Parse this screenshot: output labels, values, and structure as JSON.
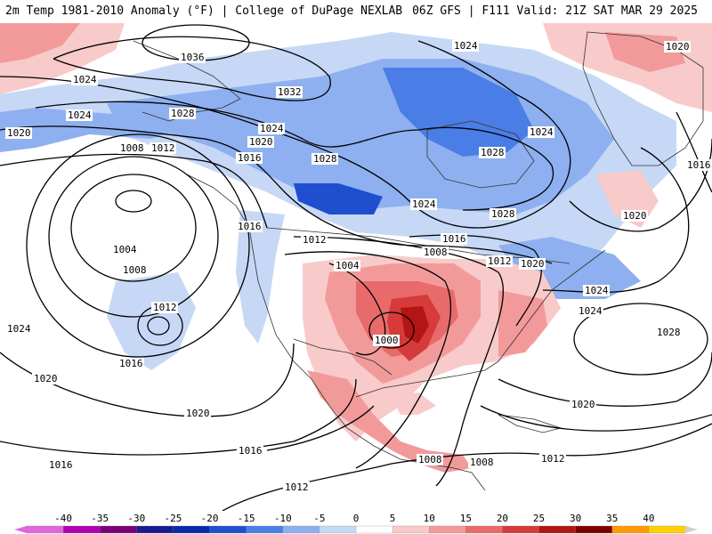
{
  "header": {
    "title_left": "2m Temp 1981-2010 Anomaly (°F) | College of DuPage NEXLAB",
    "title_right": "06Z GFS | F111 Valid: 21Z SAT MAR 29 2025"
  },
  "isobar_labels": [
    "1036",
    "1032",
    "1028",
    "1024",
    "1020",
    "1016",
    "1012",
    "1008",
    "1004",
    "1000"
  ],
  "legend": {
    "ticks": [
      "-40",
      "-35",
      "-30",
      "-25",
      "-20",
      "-15",
      "-10",
      "-5",
      "0",
      "5",
      "10",
      "15",
      "20",
      "25",
      "30",
      "35",
      "40"
    ],
    "colors": [
      "#e066e0",
      "#b000b0",
      "#7a007a",
      "#1a1a8c",
      "#0a2aa8",
      "#1f4fcf",
      "#4a7ee6",
      "#8eb0f0",
      "#c6d8f6",
      "#ffffff",
      "#f8caca",
      "#f29a9a",
      "#e86a6a",
      "#d63a3a",
      "#b31414",
      "#7a0000",
      "#ff9a00",
      "#ffd000"
    ]
  },
  "map": {
    "cold_anomaly_color": "#8eb0f0",
    "warm_anomaly_color": "#e86a6a",
    "strong_warm_color": "#b31414",
    "strong_cold_color": "#1f4fcf"
  }
}
